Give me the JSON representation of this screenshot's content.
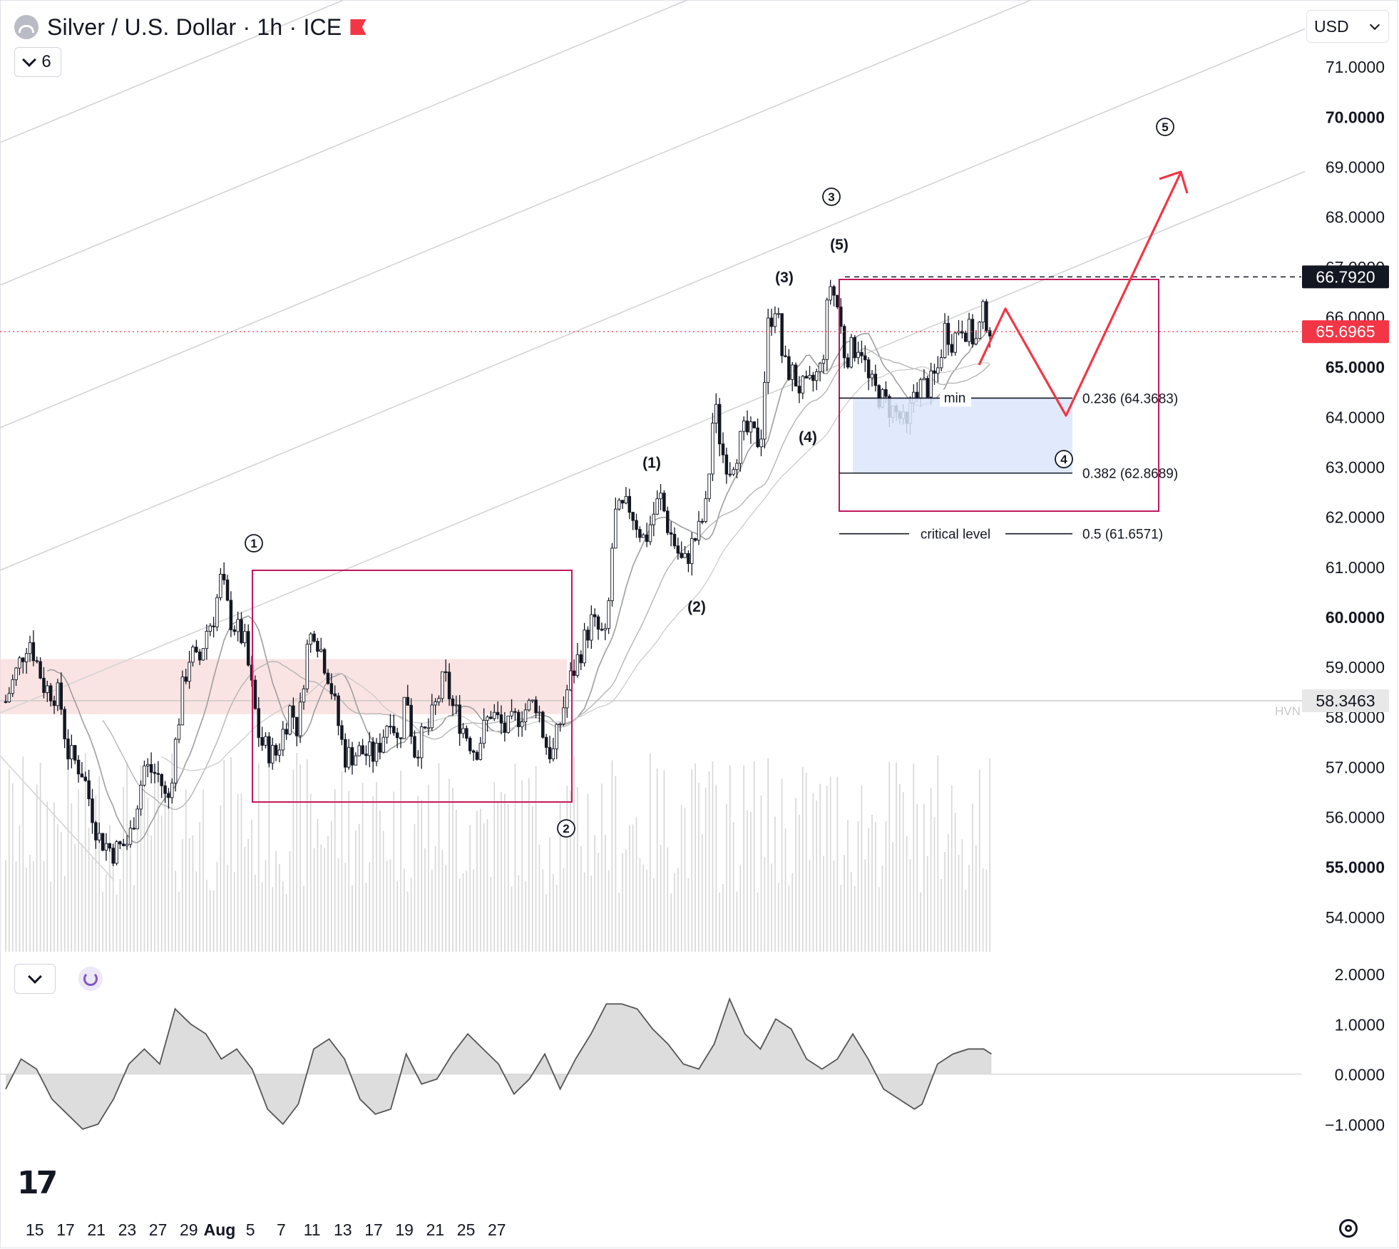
{
  "header": {
    "title": "Silver / U.S. Dollar · 1h · ICE",
    "indicator_count": "6",
    "currency": "USD"
  },
  "colors": {
    "accent": "#f23645",
    "box": "#c2185b",
    "zone": "#dbe6fb",
    "hvn_zone": "#f8d9d9",
    "grid": "#d4d4d4",
    "candle": "#131722"
  },
  "icons": {
    "symbol": "silver-coin-icon",
    "flag": "flag-icon",
    "collapse": "chevron-down-icon",
    "refresh": "refresh-icon",
    "logo": "tradingview-logo",
    "settings": "gear-icon"
  },
  "chart_data": [
    {
      "type": "candlestick",
      "series_name": "Silver / U.S. Dollar",
      "timeframe": "1h",
      "x_ticks": [
        "15",
        "17",
        "21",
        "23",
        "27",
        "29",
        "Aug",
        "5",
        "7",
        "11",
        "13",
        "17",
        "19",
        "21",
        "25",
        "27"
      ],
      "y_ticks": [
        "71.0000",
        "70.0000",
        "69.0000",
        "68.0000",
        "67.0000",
        "66.0000",
        "65.0000",
        "64.0000",
        "63.0000",
        "62.0000",
        "61.0000",
        "60.0000",
        "59.0000",
        "58.0000",
        "57.0000",
        "56.0000",
        "55.0000",
        "54.0000"
      ],
      "ylim": [
        53.3,
        71.9
      ],
      "price_path": [
        [
          0,
          58.3
        ],
        [
          3,
          59.6
        ],
        [
          5,
          58.6
        ],
        [
          7,
          58.4
        ],
        [
          8,
          57.3
        ],
        [
          10,
          56.9
        ],
        [
          12,
          55.6
        ],
        [
          14,
          55.3
        ],
        [
          16,
          55.5
        ],
        [
          18,
          57.0
        ],
        [
          20,
          56.8
        ],
        [
          21,
          56.2
        ],
        [
          23,
          58.6
        ],
        [
          24,
          59.3
        ],
        [
          25,
          59.0
        ],
        [
          26,
          59.7
        ],
        [
          27,
          60.0
        ],
        [
          28,
          60.8
        ],
        [
          29,
          60.0
        ],
        [
          31,
          59.5
        ],
        [
          33,
          57.5
        ],
        [
          35,
          57.2
        ],
        [
          37,
          58.2
        ],
        [
          38,
          57.7
        ],
        [
          39,
          59.3
        ],
        [
          40,
          59.8
        ],
        [
          42,
          58.8
        ],
        [
          44,
          57.2
        ],
        [
          46,
          57.3
        ],
        [
          48,
          57.2
        ],
        [
          50,
          58.1
        ],
        [
          51,
          57.4
        ],
        [
          52,
          58.6
        ],
        [
          53,
          57.3
        ],
        [
          55,
          57.8
        ],
        [
          57,
          58.8
        ],
        [
          58,
          58.2
        ],
        [
          60,
          57.6
        ],
        [
          61,
          57.3
        ],
        [
          63,
          58.1
        ],
        [
          65,
          57.7
        ],
        [
          67,
          58.1
        ],
        [
          69,
          58.3
        ],
        [
          70,
          57.5
        ],
        [
          71,
          57.2
        ],
        [
          73,
          58.6
        ],
        [
          76,
          59.9
        ],
        [
          78,
          59.5
        ],
        [
          79,
          62.0
        ],
        [
          81,
          62.2
        ],
        [
          83,
          61.5
        ],
        [
          84,
          62.0
        ],
        [
          85,
          62.4
        ],
        [
          86,
          61.8
        ],
        [
          88,
          61.0
        ],
        [
          89,
          61.4
        ],
        [
          90,
          61.7
        ],
        [
          91,
          62.2
        ],
        [
          92,
          64.3
        ],
        [
          93,
          63.3
        ],
        [
          94,
          63.0
        ],
        [
          96,
          63.7
        ],
        [
          98,
          63.5
        ],
        [
          99,
          65.8
        ],
        [
          100,
          66.3
        ],
        [
          101,
          65.0
        ],
        [
          102,
          64.9
        ],
        [
          103,
          64.6
        ],
        [
          104,
          64.5
        ],
        [
          106,
          65.0
        ],
        [
          107,
          66.7
        ],
        [
          108,
          66.2
        ],
        [
          109,
          65.2
        ],
        [
          111,
          65.5
        ],
        [
          112,
          64.7
        ],
        [
          114,
          64.3
        ],
        [
          116,
          64.0
        ],
        [
          117,
          63.7
        ],
        [
          118,
          64.6
        ],
        [
          120,
          64.6
        ],
        [
          121,
          64.9
        ],
        [
          122,
          65.8
        ],
        [
          123,
          65.5
        ],
        [
          124,
          65.9
        ],
        [
          126,
          65.5
        ],
        [
          127,
          66.1
        ],
        [
          128,
          65.7
        ]
      ],
      "x_ticks_at": [
        1,
        5,
        9,
        13,
        17,
        21,
        25,
        29,
        33,
        37,
        41,
        45,
        49,
        53,
        57,
        61
      ],
      "moving_averages": 3,
      "volume": "shown as vertical bars at bottom of price pane"
    },
    {
      "type": "area",
      "series_name": "oscillator",
      "y_ticks": [
        "2.0000",
        "1.0000",
        "0.0000",
        "−1.0000"
      ],
      "ylim": [
        -1.5,
        2.2
      ],
      "values_path": [
        [
          0,
          -0.3
        ],
        [
          2,
          0.3
        ],
        [
          4,
          0.1
        ],
        [
          6,
          -0.5
        ],
        [
          8,
          -0.8
        ],
        [
          10,
          -1.1
        ],
        [
          12,
          -1.0
        ],
        [
          14,
          -0.5
        ],
        [
          16,
          0.2
        ],
        [
          18,
          0.5
        ],
        [
          20,
          0.2
        ],
        [
          22,
          1.3
        ],
        [
          24,
          1.0
        ],
        [
          26,
          0.8
        ],
        [
          28,
          0.3
        ],
        [
          30,
          0.5
        ],
        [
          32,
          0.1
        ],
        [
          34,
          -0.7
        ],
        [
          36,
          -1.0
        ],
        [
          38,
          -0.6
        ],
        [
          40,
          0.5
        ],
        [
          42,
          0.7
        ],
        [
          44,
          0.3
        ],
        [
          46,
          -0.5
        ],
        [
          48,
          -0.8
        ],
        [
          50,
          -0.7
        ],
        [
          52,
          0.4
        ],
        [
          54,
          -0.2
        ],
        [
          56,
          -0.1
        ],
        [
          58,
          0.4
        ],
        [
          60,
          0.8
        ],
        [
          62,
          0.5
        ],
        [
          64,
          0.2
        ],
        [
          66,
          -0.4
        ],
        [
          68,
          -0.1
        ],
        [
          70,
          0.4
        ],
        [
          72,
          -0.3
        ],
        [
          74,
          0.3
        ],
        [
          76,
          0.8
        ],
        [
          78,
          1.4
        ],
        [
          80,
          1.4
        ],
        [
          82,
          1.3
        ],
        [
          84,
          0.9
        ],
        [
          86,
          0.6
        ],
        [
          88,
          0.2
        ],
        [
          90,
          0.1
        ],
        [
          92,
          0.6
        ],
        [
          94,
          1.5
        ],
        [
          96,
          0.8
        ],
        [
          98,
          0.5
        ],
        [
          100,
          1.1
        ],
        [
          102,
          0.9
        ],
        [
          104,
          0.3
        ],
        [
          106,
          0.1
        ],
        [
          108,
          0.3
        ],
        [
          110,
          0.8
        ],
        [
          112,
          0.3
        ],
        [
          114,
          -0.3
        ],
        [
          116,
          -0.5
        ],
        [
          118,
          -0.7
        ],
        [
          119,
          -0.6
        ],
        [
          121,
          0.2
        ],
        [
          123,
          0.4
        ],
        [
          125,
          0.5
        ],
        [
          127,
          0.5
        ],
        [
          128,
          0.4
        ]
      ]
    }
  ],
  "labels": {
    "last_price": "65.6965",
    "high_level": "66.7920",
    "hvn_price": "58.3463",
    "hvn": "HVN",
    "min": "min",
    "critical_level": "critical level",
    "fib_0236": "0.236 (64.3683)",
    "fib_0382": "0.382 (62.8689)",
    "fib_05": "0.5 (61.6571)",
    "wave_1": "1",
    "wave_2": "2",
    "wave_3": "3",
    "wave_4": "4",
    "wave_5": "5",
    "sub_1": "(1)",
    "sub_2": "(2)",
    "sub_3": "(3)",
    "sub_4": "(4)",
    "sub_5": "(5)"
  },
  "values": {
    "last_price": 65.6965,
    "high_level": 66.792,
    "hvn_price": 58.3463,
    "fib_0236": 64.3683,
    "fib_0382": 62.8689,
    "fib_05": 61.6571
  }
}
